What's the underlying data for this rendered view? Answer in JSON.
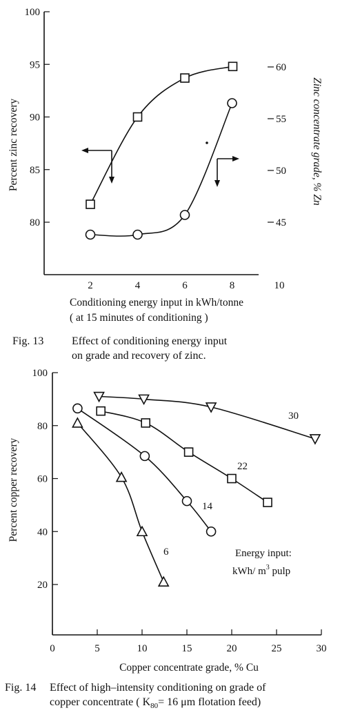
{
  "chart_data": [
    {
      "type": "line",
      "xlabel": "Conditioning  energy input in kWh/tonne",
      "xlabel2": "( at 15 minutes of conditioning )",
      "ylabel": "Percent zinc recovery",
      "y2label": "Zinc concentrate grade, % Zn",
      "xlim": [
        1,
        10
      ],
      "ylim": [
        75,
        100
      ],
      "y2lim": [
        40,
        65
      ],
      "xticks": [
        "2",
        "4",
        "6",
        "8",
        "10"
      ],
      "yticks": [
        "80",
        "85",
        "90",
        "95",
        "100"
      ],
      "y2ticks": [
        "45",
        "50",
        "55",
        "60"
      ],
      "grid": false,
      "series": [
        {
          "marker": "square",
          "axis": "left",
          "x": [
            2,
            4,
            6,
            8
          ],
          "y": [
            81.7,
            90.0,
            93.7,
            94.8
          ]
        },
        {
          "marker": "circle",
          "axis": "right",
          "x": [
            2,
            4,
            6,
            8
          ],
          "y": [
            43.8,
            43.8,
            45.7,
            56.5
          ]
        }
      ],
      "caption_label": "Fig. 13",
      "caption_line1": "Effect of conditioning energy  input",
      "caption_line2": "on grade and recovery of zinc."
    },
    {
      "type": "line",
      "xlabel": "Copper concentrate grade, % Cu",
      "ylabel": "Percent copper recovery",
      "xlim": [
        0,
        30
      ],
      "ylim": [
        10,
        100
      ],
      "xticks": [
        "0",
        "5",
        "10",
        "15",
        "20",
        "25",
        "30"
      ],
      "yticks": [
        "20",
        "40",
        "60",
        "80",
        "100"
      ],
      "grid": false,
      "series": [
        {
          "name": "30",
          "marker": "triangle-down",
          "x": [
            5.2,
            10.2,
            17.7,
            29.3
          ],
          "y": [
            91,
            90,
            87,
            75
          ]
        },
        {
          "name": "22",
          "marker": "square",
          "x": [
            5.4,
            10.4,
            15.2,
            20.0,
            24.0
          ],
          "y": [
            85.5,
            81,
            70,
            60,
            51
          ]
        },
        {
          "name": "14",
          "marker": "circle",
          "x": [
            2.8,
            10.3,
            15.0,
            17.7
          ],
          "y": [
            86.5,
            68.5,
            51.5,
            40
          ]
        },
        {
          "name": "6",
          "marker": "triangle-up",
          "x": [
            2.8,
            7.7,
            10.0,
            12.4
          ],
          "y": [
            81,
            60.5,
            40,
            21
          ]
        }
      ],
      "legend_line1": "Energy input:",
      "legend_line2": "kWh/ m",
      "legend_sup": "3",
      "legend_line2b": " pulp",
      "caption_label": "Fig. 14",
      "caption_line1": "Effect of high–intensity conditioning on grade of",
      "caption_line2a": "copper concentrate ( K",
      "caption_sub": "80",
      "caption_line2b": "= 16 μm flotation feed)"
    }
  ]
}
